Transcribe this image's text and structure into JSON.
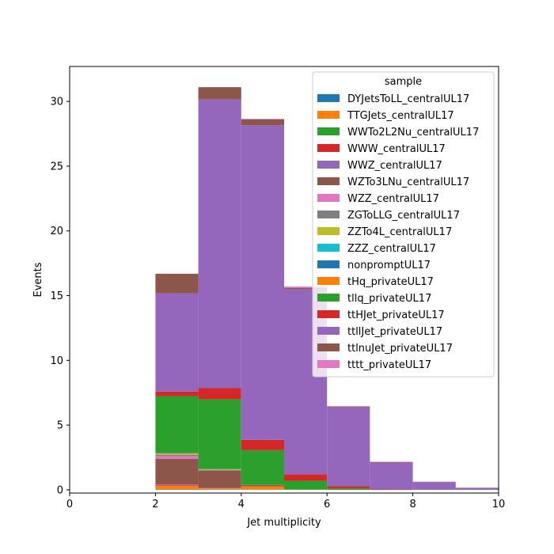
{
  "chart_data": {
    "type": "bar",
    "stacked": true,
    "xlabel": "Jet multiplicity",
    "ylabel": "Events",
    "xlim": [
      0,
      10
    ],
    "ylim": [
      -0.25,
      32.7
    ],
    "xticks": [
      0,
      2,
      4,
      6,
      8,
      10
    ],
    "yticks": [
      0,
      5,
      10,
      15,
      20,
      25,
      30
    ],
    "bin_edges": [
      0,
      1,
      2,
      3,
      4,
      5,
      6,
      7,
      8,
      9,
      10
    ],
    "legend": {
      "title": "sample",
      "placement": "upper right"
    },
    "series": [
      {
        "name": "DYJetsToLL_centralUL17",
        "color": "#1f77b4",
        "values": [
          0,
          0,
          0.02,
          0.01,
          0.01,
          0,
          0,
          0,
          0,
          0
        ]
      },
      {
        "name": "TTGJets_centralUL17",
        "color": "#ff7f0e",
        "values": [
          0,
          0,
          0.3,
          0.1,
          0.25,
          0,
          0,
          0,
          0,
          0
        ]
      },
      {
        "name": "WWTo2L2Nu_centralUL17",
        "color": "#2ca02c",
        "values": [
          0,
          0,
          0,
          0,
          0,
          0,
          0,
          0,
          0,
          0
        ]
      },
      {
        "name": "WWW_centralUL17",
        "color": "#d62728",
        "values": [
          0,
          0,
          0.05,
          0.02,
          0,
          0,
          0,
          0,
          0,
          0
        ]
      },
      {
        "name": "WWZ_centralUL17",
        "color": "#9467bd",
        "values": [
          0,
          0,
          0.03,
          0.02,
          0,
          0,
          0,
          0,
          0,
          0
        ]
      },
      {
        "name": "WZTo3LNu_centralUL17",
        "color": "#8c564b",
        "values": [
          0,
          0,
          2.0,
          1.35,
          0.1,
          0,
          0,
          0,
          0,
          0
        ]
      },
      {
        "name": "WZZ_centralUL17",
        "color": "#e377c2",
        "values": [
          0,
          0,
          0.2,
          0.02,
          0,
          0,
          0,
          0,
          0,
          0
        ]
      },
      {
        "name": "ZGToLLG_centralUL17",
        "color": "#7f7f7f",
        "values": [
          0,
          0,
          0.1,
          0.02,
          0,
          0,
          0,
          0,
          0,
          0
        ]
      },
      {
        "name": "ZZTo4L_centralUL17",
        "color": "#bcbd22",
        "values": [
          0,
          0,
          0.05,
          0.02,
          0,
          0,
          0,
          0,
          0,
          0
        ]
      },
      {
        "name": "ZZZ_centralUL17",
        "color": "#17becf",
        "values": [
          0,
          0,
          0.02,
          0.01,
          0,
          0,
          0,
          0,
          0,
          0
        ]
      },
      {
        "name": "nonpromptUL17",
        "color": "#1f77b4",
        "values": [
          0,
          0,
          0.02,
          0.01,
          0,
          0,
          0,
          0,
          0,
          0
        ]
      },
      {
        "name": "tHq_privateUL17",
        "color": "#ff7f0e",
        "values": [
          0,
          0,
          0.05,
          0.02,
          0.02,
          0.02,
          0,
          0,
          0,
          0
        ]
      },
      {
        "name": "tllq_privateUL17",
        "color": "#2ca02c",
        "values": [
          0,
          0,
          4.4,
          5.4,
          2.68,
          0.68,
          0.12,
          0,
          0,
          0
        ]
      },
      {
        "name": "ttHJet_privateUL17",
        "color": "#d62728",
        "values": [
          0,
          0,
          0.35,
          0.85,
          0.8,
          0.5,
          0.15,
          0.05,
          0,
          0
        ]
      },
      {
        "name": "ttllJet_privateUL17",
        "color": "#9467bd",
        "values": [
          0,
          0,
          7.6,
          22.3,
          24.3,
          14.3,
          6.1,
          2.05,
          0.6,
          0.15
        ]
      },
      {
        "name": "ttlnuJet_privateUL17",
        "color": "#8c564b",
        "values": [
          0,
          0,
          1.5,
          0.95,
          0.45,
          0.1,
          0.05,
          0.05,
          0.02,
          0.01
        ]
      },
      {
        "name": "tttt_privateUL17",
        "color": "#e377c2",
        "values": [
          0,
          0,
          0,
          0,
          0.05,
          0.1,
          0.05,
          0.02,
          0.01,
          0.01
        ]
      }
    ]
  }
}
